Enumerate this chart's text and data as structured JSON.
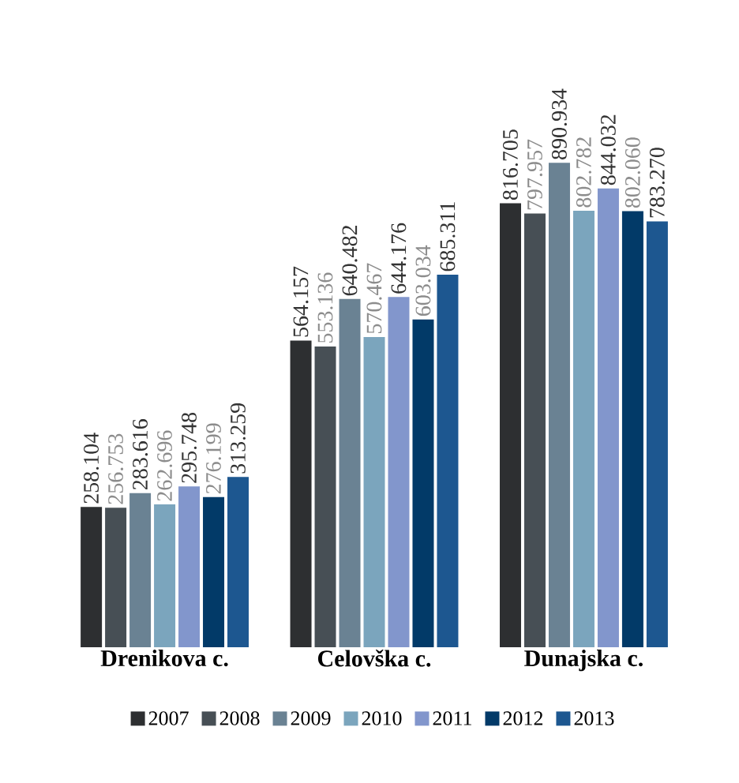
{
  "chart_data": {
    "type": "bar",
    "categories": [
      "Drenikova c.",
      "Celovška c.",
      "Dunajska c."
    ],
    "series": [
      {
        "name": "2007",
        "color": "#2d2f31",
        "values": [
          258.104,
          564.157,
          816.705
        ],
        "value_labels": [
          "258.104",
          "564.157",
          "816.705"
        ]
      },
      {
        "name": "2008",
        "color": "#474f55",
        "values": [
          256.753,
          553.136,
          797.957
        ],
        "value_labels": [
          "256.753",
          "553.136",
          "797.957"
        ]
      },
      {
        "name": "2009",
        "color": "#6a8293",
        "values": [
          283.616,
          640.482,
          890.934
        ],
        "value_labels": [
          "283.616",
          "640.482",
          "890.934"
        ]
      },
      {
        "name": "2010",
        "color": "#7ba5bd",
        "values": [
          262.696,
          570.467,
          802.782
        ],
        "value_labels": [
          "262.696",
          "570.467",
          "802.782"
        ]
      },
      {
        "name": "2011",
        "color": "#8296cc",
        "values": [
          295.748,
          644.176,
          844.032
        ],
        "value_labels": [
          "295.748",
          "644.176",
          "844.032"
        ]
      },
      {
        "name": "2012",
        "color": "#023a68",
        "values": [
          276.199,
          603.034,
          802.06
        ],
        "value_labels": [
          "276.199",
          "603.034",
          "802.060"
        ]
      },
      {
        "name": "2013",
        "color": "#1d5790",
        "values": [
          313.259,
          685.311,
          783.27
        ],
        "value_labels": [
          "313.259",
          "685.311",
          "783.270"
        ]
      }
    ],
    "legend": "bottom"
  }
}
